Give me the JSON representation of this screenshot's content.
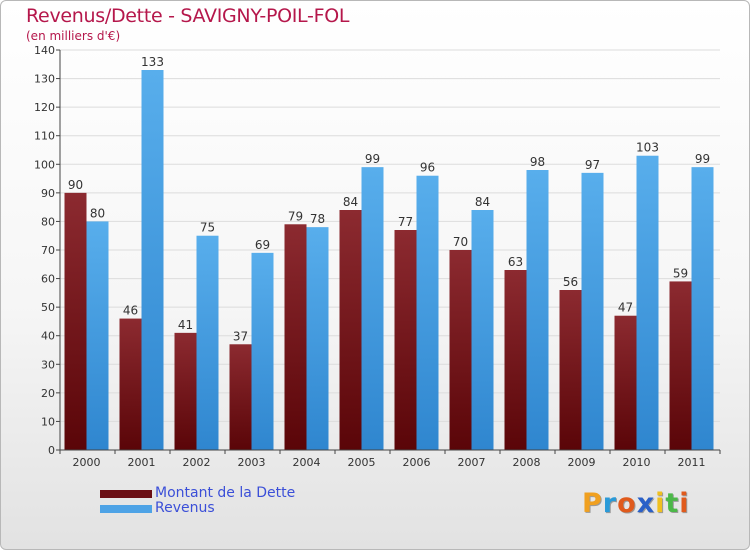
{
  "title": "Revenus/Dette - SAVIGNY-POIL-FOL",
  "subtitle": "(en milliers d'€)",
  "colors": {
    "debt": "#7a1e24",
    "revenue": "#4ea3e6",
    "title": "#b5174b",
    "legend_text": "#3b4fd8"
  },
  "legend": [
    {
      "label": "Montant de la Dette",
      "color": "#6b0f14"
    },
    {
      "label": "Revenus",
      "color": "#4ea3e6"
    }
  ],
  "logo": {
    "letters": [
      "P",
      "r",
      "o",
      "x",
      "i",
      "t",
      "i"
    ],
    "colors": [
      "#f0a020",
      "#2a9ad8",
      "#e05a1c",
      "#2a60c8",
      "#f0c020",
      "#4cb848",
      "#e05a1c"
    ]
  },
  "chart_data": {
    "type": "bar",
    "categories": [
      "2000",
      "2001",
      "2002",
      "2003",
      "2004",
      "2005",
      "2006",
      "2007",
      "2008",
      "2009",
      "2010",
      "2011"
    ],
    "series": [
      {
        "name": "Montant de la Dette",
        "values": [
          90,
          46,
          41,
          37,
          79,
          84,
          77,
          70,
          63,
          56,
          47,
          59
        ]
      },
      {
        "name": "Revenus",
        "values": [
          80,
          133,
          75,
          69,
          78,
          99,
          96,
          84,
          98,
          97,
          103,
          99
        ]
      }
    ],
    "ylim": [
      0,
      140
    ],
    "yticks": [
      0,
      10,
      20,
      30,
      40,
      50,
      60,
      70,
      80,
      90,
      100,
      110,
      120,
      130,
      140
    ],
    "grid": true,
    "legend_position": "bottom-left"
  }
}
